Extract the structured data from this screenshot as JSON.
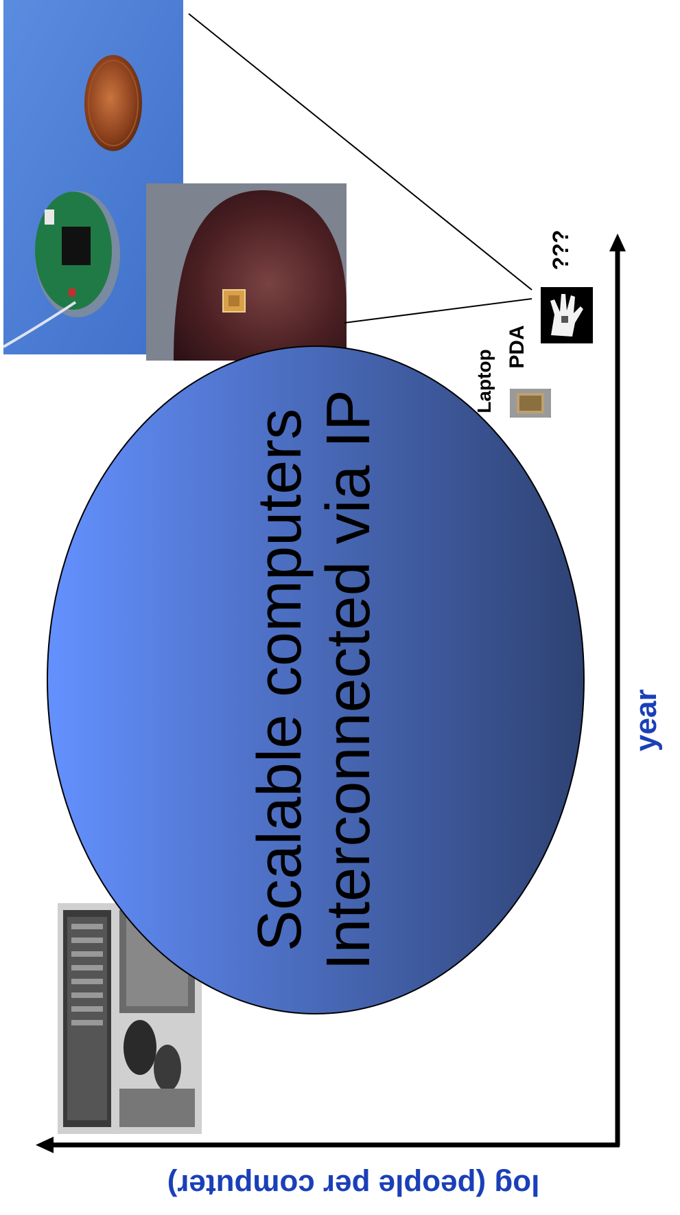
{
  "diagram": {
    "ellipse": {
      "line1": "Scalable computers",
      "line2": "Interconnected via IP",
      "gradient_start": "#6491ff",
      "gradient_end": "#2e4273"
    },
    "axes": {
      "x_label": "year",
      "y_label": "log (people per computer)",
      "label_color": "#1a3fb8"
    },
    "devices": {
      "laptop": "Laptop",
      "pda": "PDA",
      "unknown": "???"
    },
    "photos": {
      "sensor_board": "sensor-board-with-coin-photo",
      "fingertip_chip": "chip-on-fingertip-photo",
      "mainframe": "mainframe-computer-room-photo",
      "hand_device": "hand-with-sensor-photo",
      "pda_device": "pda-device-photo"
    }
  }
}
